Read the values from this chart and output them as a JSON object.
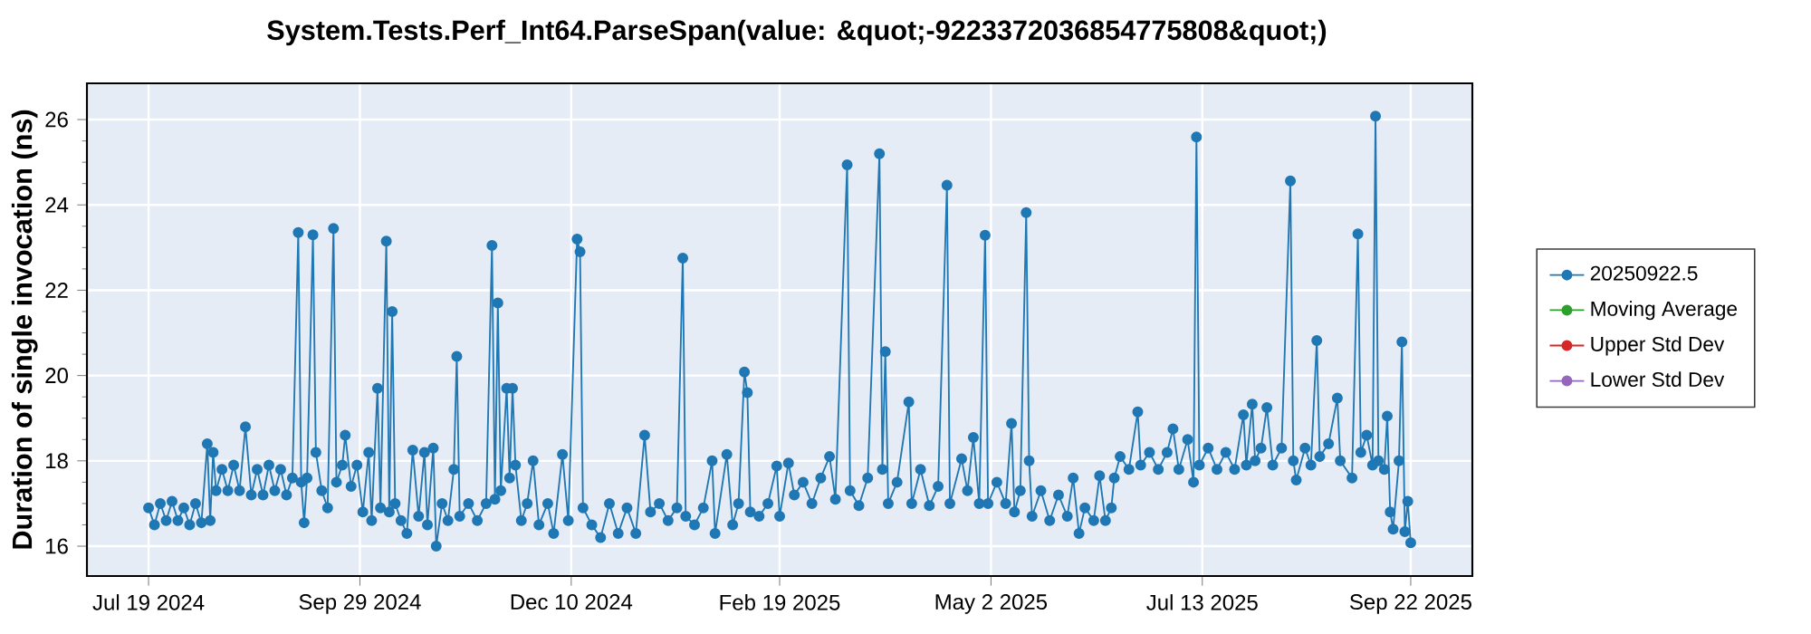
{
  "chart_data": {
    "type": "line",
    "title": "System.Tests.Perf_Int64.ParseSpan(value: &quot;-9223372036854775808&quot;)",
    "ylabel": "Duration of single invocation (ns)",
    "xlim": [
      "2024-06-28",
      "2025-10-13"
    ],
    "ylim": [
      15.3,
      26.85
    ],
    "xticks": [
      {
        "value": "2024-07-19",
        "label": "Jul 19 2024"
      },
      {
        "value": "2024-09-29",
        "label": "Sep 29 2024"
      },
      {
        "value": "2024-12-10",
        "label": "Dec 10 2024"
      },
      {
        "value": "2025-02-19",
        "label": "Feb 19 2025"
      },
      {
        "value": "2025-05-02",
        "label": "May 2 2025"
      },
      {
        "value": "2025-07-13",
        "label": "Jul 13 2025"
      },
      {
        "value": "2025-09-22",
        "label": "Sep 22 2025"
      }
    ],
    "yticks": [
      16,
      18,
      20,
      22,
      24,
      26
    ],
    "grid": true,
    "legend": "right",
    "marker": "circle",
    "line_style": "solid",
    "x": [
      "2024-07-19",
      "2024-07-21",
      "2024-07-23",
      "2024-07-25",
      "2024-07-27",
      "2024-07-29",
      "2024-07-31",
      "2024-08-02",
      "2024-08-04",
      "2024-08-06",
      "2024-08-08",
      "2024-08-09",
      "2024-08-10",
      "2024-08-11",
      "2024-08-13",
      "2024-08-15",
      "2024-08-17",
      "2024-08-19",
      "2024-08-21",
      "2024-08-23",
      "2024-08-25",
      "2024-08-27",
      "2024-08-29",
      "2024-08-31",
      "2024-09-02",
      "2024-09-04",
      "2024-09-06",
      "2024-09-08",
      "2024-09-09",
      "2024-09-10",
      "2024-09-11",
      "2024-09-13",
      "2024-09-14",
      "2024-09-16",
      "2024-09-18",
      "2024-09-20",
      "2024-09-21",
      "2024-09-23",
      "2024-09-24",
      "2024-09-26",
      "2024-09-28",
      "2024-09-30",
      "2024-10-02",
      "2024-10-03",
      "2024-10-05",
      "2024-10-06",
      "2024-10-08",
      "2024-10-09",
      "2024-10-10",
      "2024-10-11",
      "2024-10-13",
      "2024-10-15",
      "2024-10-17",
      "2024-10-19",
      "2024-10-21",
      "2024-10-22",
      "2024-10-24",
      "2024-10-25",
      "2024-10-27",
      "2024-10-29",
      "2024-10-31",
      "2024-11-01",
      "2024-11-02",
      "2024-11-05",
      "2024-11-08",
      "2024-11-11",
      "2024-11-13",
      "2024-11-14",
      "2024-11-15",
      "2024-11-16",
      "2024-11-18",
      "2024-11-19",
      "2024-11-20",
      "2024-11-21",
      "2024-11-23",
      "2024-11-25",
      "2024-11-27",
      "2024-11-29",
      "2024-12-02",
      "2024-12-04",
      "2024-12-07",
      "2024-12-09",
      "2024-12-12",
      "2024-12-13",
      "2024-12-14",
      "2024-12-17",
      "2024-12-20",
      "2024-12-23",
      "2024-12-26",
      "2024-12-29",
      "2025-01-01",
      "2025-01-04",
      "2025-01-06",
      "2025-01-09",
      "2025-01-12",
      "2025-01-15",
      "2025-01-17",
      "2025-01-18",
      "2025-01-21",
      "2025-01-24",
      "2025-01-27",
      "2025-01-28",
      "2025-02-01",
      "2025-02-03",
      "2025-02-05",
      "2025-02-07",
      "2025-02-08",
      "2025-02-09",
      "2025-02-12",
      "2025-02-15",
      "2025-02-18",
      "2025-02-19",
      "2025-02-22",
      "2025-02-24",
      "2025-02-27",
      "2025-03-02",
      "2025-03-05",
      "2025-03-08",
      "2025-03-10",
      "2025-03-14",
      "2025-03-15",
      "2025-03-18",
      "2025-03-21",
      "2025-03-25",
      "2025-03-26",
      "2025-03-27",
      "2025-03-28",
      "2025-03-31",
      "2025-04-04",
      "2025-04-05",
      "2025-04-08",
      "2025-04-11",
      "2025-04-14",
      "2025-04-17",
      "2025-04-18",
      "2025-04-22",
      "2025-04-24",
      "2025-04-26",
      "2025-04-28",
      "2025-04-30",
      "2025-05-01",
      "2025-05-04",
      "2025-05-07",
      "2025-05-09",
      "2025-05-10",
      "2025-05-12",
      "2025-05-14",
      "2025-05-15",
      "2025-05-16",
      "2025-05-19",
      "2025-05-22",
      "2025-05-25",
      "2025-05-28",
      "2025-05-30",
      "2025-06-01",
      "2025-06-03",
      "2025-06-06",
      "2025-06-08",
      "2025-06-10",
      "2025-06-12",
      "2025-06-13",
      "2025-06-15",
      "2025-06-18",
      "2025-06-21",
      "2025-06-22",
      "2025-06-25",
      "2025-06-28",
      "2025-07-01",
      "2025-07-03",
      "2025-07-05",
      "2025-07-08",
      "2025-07-10",
      "2025-07-11",
      "2025-07-12",
      "2025-07-15",
      "2025-07-18",
      "2025-07-21",
      "2025-07-24",
      "2025-07-27",
      "2025-07-28",
      "2025-07-30",
      "2025-07-31",
      "2025-08-02",
      "2025-08-04",
      "2025-08-06",
      "2025-08-09",
      "2025-08-12",
      "2025-08-13",
      "2025-08-14",
      "2025-08-17",
      "2025-08-19",
      "2025-08-21",
      "2025-08-22",
      "2025-08-25",
      "2025-08-28",
      "2025-08-29",
      "2025-09-02",
      "2025-09-04",
      "2025-09-05",
      "2025-09-07",
      "2025-09-09",
      "2025-09-10",
      "2025-09-11",
      "2025-09-13",
      "2025-09-14",
      "2025-09-15",
      "2025-09-16",
      "2025-09-18",
      "2025-09-19",
      "2025-09-20",
      "2025-09-21",
      "2025-09-22"
    ],
    "series": [
      {
        "name": "20250922.5",
        "color": "#1f77b4",
        "values": [
          16.9,
          16.5,
          17.0,
          16.6,
          17.05,
          16.6,
          16.9,
          16.5,
          17.0,
          16.55,
          18.4,
          16.6,
          18.2,
          17.3,
          17.8,
          17.3,
          17.9,
          17.3,
          18.8,
          17.2,
          17.8,
          17.2,
          17.9,
          17.3,
          17.8,
          17.2,
          17.6,
          23.35,
          17.5,
          16.55,
          17.6,
          23.3,
          18.2,
          17.3,
          16.9,
          23.45,
          17.5,
          17.9,
          18.6,
          17.4,
          17.9,
          16.8,
          18.2,
          16.6,
          19.7,
          16.9,
          23.15,
          16.8,
          21.5,
          17.0,
          16.6,
          16.3,
          18.25,
          16.7,
          18.2,
          16.5,
          18.3,
          16.0,
          17.0,
          16.6,
          17.8,
          20.45,
          16.7,
          17.0,
          16.6,
          17.0,
          23.05,
          17.1,
          21.7,
          17.3,
          19.7,
          17.6,
          19.7,
          17.9,
          16.6,
          17.0,
          18.0,
          16.5,
          17.0,
          16.3,
          18.15,
          16.6,
          23.2,
          22.9,
          16.9,
          16.5,
          16.2,
          17.0,
          16.3,
          16.9,
          16.3,
          18.6,
          16.8,
          17.0,
          16.6,
          16.9,
          22.75,
          16.7,
          16.5,
          16.9,
          18.0,
          16.3,
          18.15,
          16.5,
          17.0,
          20.08,
          19.6,
          16.8,
          16.7,
          17.0,
          17.88,
          16.7,
          17.95,
          17.2,
          17.5,
          17.0,
          17.6,
          18.1,
          17.1,
          24.94,
          17.3,
          16.95,
          17.6,
          25.2,
          17.8,
          20.56,
          17.0,
          17.5,
          19.38,
          17.0,
          17.8,
          16.95,
          17.4,
          24.46,
          17.0,
          18.05,
          17.3,
          18.55,
          17.0,
          23.29,
          17.0,
          17.5,
          17.0,
          18.88,
          16.8,
          17.3,
          23.82,
          18.0,
          16.7,
          17.3,
          16.6,
          17.2,
          16.7,
          17.6,
          16.3,
          16.9,
          16.6,
          17.65,
          16.6,
          16.9,
          17.6,
          18.1,
          17.8,
          19.15,
          17.9,
          18.2,
          17.8,
          18.2,
          18.75,
          17.8,
          18.5,
          17.5,
          25.59,
          17.9,
          18.3,
          17.8,
          18.2,
          17.8,
          19.08,
          17.9,
          19.33,
          18.0,
          18.3,
          19.25,
          17.9,
          18.3,
          24.56,
          18.0,
          17.55,
          18.3,
          17.9,
          20.82,
          18.1,
          18.4,
          19.47,
          18.0,
          17.6,
          23.32,
          18.2,
          18.6,
          17.9,
          26.08,
          18.0,
          17.8,
          19.05,
          16.8,
          16.4,
          18.0,
          20.79,
          16.34,
          17.05,
          16.08
        ]
      },
      {
        "name": "Moving Average",
        "color": "#2ca02c",
        "values": [
          null,
          null,
          null,
          null,
          null,
          null,
          null,
          null,
          null,
          null,
          null,
          null,
          null,
          null,
          null,
          null,
          null,
          null,
          null,
          null,
          null,
          null,
          null,
          null,
          null,
          null,
          null,
          null,
          null,
          null,
          null,
          null,
          null,
          null,
          null,
          null,
          null,
          null,
          null,
          null,
          null,
          null,
          null,
          null,
          null,
          null,
          null,
          null,
          null,
          null,
          null,
          null,
          null,
          null,
          null,
          null,
          null,
          null,
          null,
          null,
          null,
          null,
          null,
          null,
          null,
          null,
          null,
          null,
          null,
          null,
          null,
          null,
          null,
          null,
          null,
          null,
          null,
          null,
          null,
          null,
          null,
          null,
          null,
          null,
          null,
          null,
          null,
          null,
          null,
          null,
          null,
          null,
          null,
          null,
          null,
          null,
          null,
          null,
          null,
          null,
          null,
          null,
          null,
          null,
          null,
          null,
          null,
          null,
          null,
          null,
          null,
          null,
          null,
          null,
          null,
          null,
          null,
          null,
          null,
          null,
          null,
          null,
          null,
          null,
          null,
          null,
          null,
          null,
          null,
          null,
          null,
          null,
          null,
          null,
          null,
          null,
          null,
          null,
          null,
          null,
          null,
          null,
          null,
          null,
          null,
          null,
          null,
          null,
          null,
          null,
          null,
          null,
          null,
          null,
          null,
          null,
          null,
          null,
          null,
          null,
          null,
          null,
          null,
          null,
          null,
          null,
          null,
          null,
          null,
          null,
          null,
          null,
          null,
          null,
          null,
          null,
          null,
          null,
          null,
          null,
          null,
          null,
          null,
          null,
          null,
          null,
          null,
          null,
          null,
          null,
          null,
          null,
          null,
          null,
          null,
          null,
          null,
          null,
          null,
          null,
          null,
          null,
          null,
          null,
          null,
          null,
          null,
          null,
          null,
          null,
          null,
          null
        ]
      },
      {
        "name": "Upper Std Dev",
        "color": "#d62728",
        "values": [
          null,
          null,
          null,
          null,
          null,
          null,
          null,
          null,
          null,
          null,
          null,
          null,
          null,
          null,
          null,
          null,
          null,
          null,
          null,
          null,
          null,
          null,
          null,
          null,
          null,
          null,
          null,
          null,
          null,
          null,
          null,
          null,
          null,
          null,
          null,
          null,
          null,
          null,
          null,
          null,
          null,
          null,
          null,
          null,
          null,
          null,
          null,
          null,
          null,
          null,
          null,
          null,
          null,
          null,
          null,
          null,
          null,
          null,
          null,
          null,
          null,
          null,
          null,
          null,
          null,
          null,
          null,
          null,
          null,
          null,
          null,
          null,
          null,
          null,
          null,
          null,
          null,
          null,
          null,
          null,
          null,
          null,
          null,
          null,
          null,
          null,
          null,
          null,
          null,
          null,
          null,
          null,
          null,
          null,
          null,
          null,
          null,
          null,
          null,
          null,
          null,
          null,
          null,
          null,
          null,
          null,
          null,
          null,
          null,
          null,
          null,
          null,
          null,
          null,
          null,
          null,
          null,
          null,
          null,
          null,
          null,
          null,
          null,
          null,
          null,
          null,
          null,
          null,
          null,
          null,
          null,
          null,
          null,
          null,
          null,
          null,
          null,
          null,
          null,
          null,
          null,
          null,
          null,
          null,
          null,
          null,
          null,
          null,
          null,
          null,
          null,
          null,
          null,
          null,
          null,
          null,
          null,
          null,
          null,
          null,
          null,
          null,
          null,
          null,
          null,
          null,
          null,
          null,
          null,
          null,
          null,
          null,
          null,
          null,
          null,
          null,
          null,
          null,
          null,
          null,
          null,
          null,
          null,
          null,
          null,
          null,
          null,
          null,
          null,
          null,
          null,
          null,
          null,
          null,
          null,
          null,
          null,
          null,
          null,
          null,
          null,
          null,
          null,
          null,
          null,
          null,
          null,
          null,
          null,
          null,
          null,
          null
        ]
      },
      {
        "name": "Lower Std Dev",
        "color": "#9467bd",
        "values": [
          null,
          null,
          null,
          null,
          null,
          null,
          null,
          null,
          null,
          null,
          null,
          null,
          null,
          null,
          null,
          null,
          null,
          null,
          null,
          null,
          null,
          null,
          null,
          null,
          null,
          null,
          null,
          null,
          null,
          null,
          null,
          null,
          null,
          null,
          null,
          null,
          null,
          null,
          null,
          null,
          null,
          null,
          null,
          null,
          null,
          null,
          null,
          null,
          null,
          null,
          null,
          null,
          null,
          null,
          null,
          null,
          null,
          null,
          null,
          null,
          null,
          null,
          null,
          null,
          null,
          null,
          null,
          null,
          null,
          null,
          null,
          null,
          null,
          null,
          null,
          null,
          null,
          null,
          null,
          null,
          null,
          null,
          null,
          null,
          null,
          null,
          null,
          null,
          null,
          null,
          null,
          null,
          null,
          null,
          null,
          null,
          null,
          null,
          null,
          null,
          null,
          null,
          null,
          null,
          null,
          null,
          null,
          null,
          null,
          null,
          null,
          null,
          null,
          null,
          null,
          null,
          null,
          null,
          null,
          null,
          null,
          null,
          null,
          null,
          null,
          null,
          null,
          null,
          null,
          null,
          null,
          null,
          null,
          null,
          null,
          null,
          null,
          null,
          null,
          null,
          null,
          null,
          null,
          null,
          null,
          null,
          null,
          null,
          null,
          null,
          null,
          null,
          null,
          null,
          null,
          null,
          null,
          null,
          null,
          null,
          null,
          null,
          null,
          null,
          null,
          null,
          null,
          null,
          null,
          null,
          null,
          null,
          null,
          null,
          null,
          null,
          null,
          null,
          null,
          null,
          null,
          null,
          null,
          null,
          null,
          null,
          null,
          null,
          null,
          null,
          null,
          null,
          null,
          null,
          null,
          null,
          null,
          null,
          null,
          null,
          null,
          null,
          null,
          null,
          null,
          null,
          null,
          null,
          null,
          null,
          null,
          null
        ]
      }
    ]
  }
}
